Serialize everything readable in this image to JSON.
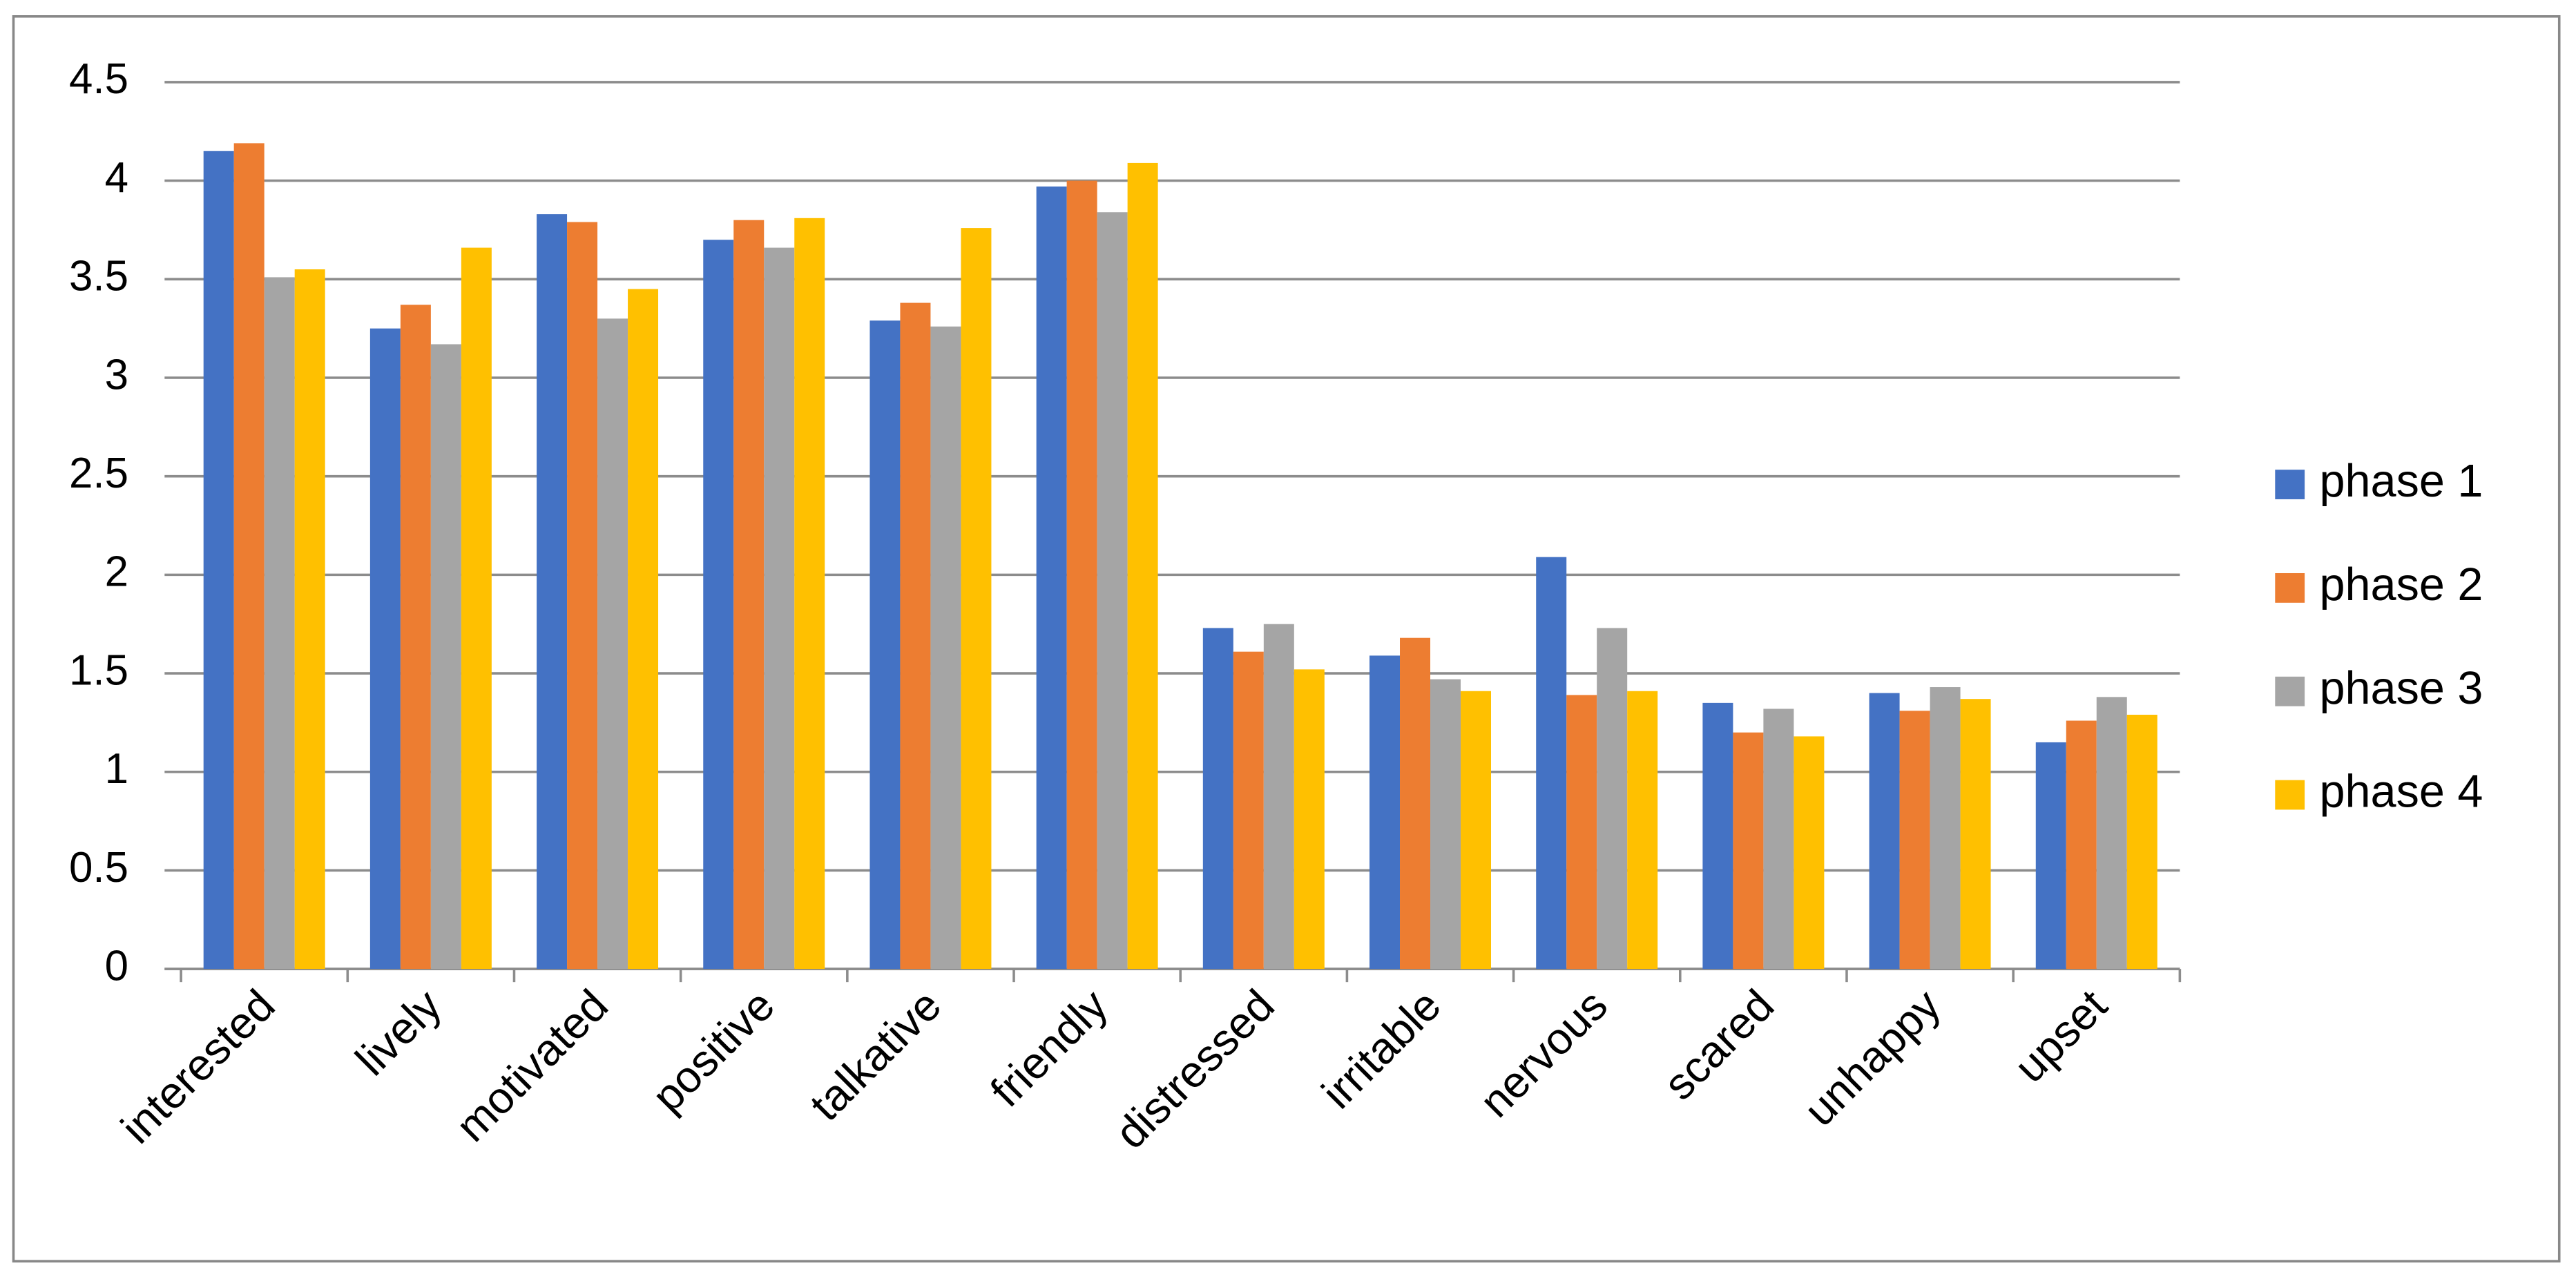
{
  "chart_data": {
    "type": "bar",
    "categories": [
      "interested",
      "lively",
      "motivated",
      "positive",
      "talkative",
      "friendly",
      "distressed",
      "irritable",
      "nervous",
      "scared",
      "unhappy",
      "upset"
    ],
    "series": [
      {
        "name": "phase 1",
        "color": "#4472c4",
        "values": [
          4.15,
          3.25,
          3.83,
          3.7,
          3.29,
          3.97,
          1.73,
          1.59,
          2.09,
          1.35,
          1.4,
          1.15
        ]
      },
      {
        "name": "phase 2",
        "color": "#ed7d31",
        "values": [
          4.19,
          3.37,
          3.79,
          3.8,
          3.38,
          4.0,
          1.61,
          1.68,
          1.39,
          1.2,
          1.31,
          1.26
        ]
      },
      {
        "name": "phase 3",
        "color": "#a5a5a5",
        "values": [
          3.51,
          3.17,
          3.3,
          3.66,
          3.26,
          3.84,
          1.75,
          1.47,
          1.73,
          1.32,
          1.43,
          1.38
        ]
      },
      {
        "name": "phase 4",
        "color": "#ffc000",
        "values": [
          3.55,
          3.66,
          3.45,
          3.81,
          3.76,
          4.09,
          1.52,
          1.41,
          1.41,
          1.18,
          1.37,
          1.29
        ]
      }
    ],
    "ylim": [
      0,
      4.5
    ],
    "yticks": [
      0,
      0.5,
      1,
      1.5,
      2,
      2.5,
      3,
      3.5,
      4,
      4.5
    ],
    "grid": true,
    "legend": "right"
  }
}
